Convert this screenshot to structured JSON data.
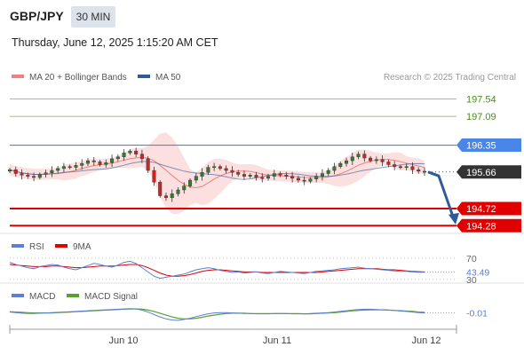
{
  "header": {
    "symbol": "GBP/JPY",
    "timeframe": "30 MIN",
    "datetime": "Thursday, June 12, 2025 1:15:20 AM CET"
  },
  "colors": {
    "ma20": "#f08080",
    "ma50": "#2e5b9a",
    "bollinger_fill": "#fbd9d9",
    "resistance": "#7cb342",
    "pivot": "#4a86e8",
    "support": "#e00000",
    "current": "#333333",
    "candle_up": "#2e7d32",
    "candle_down": "#c62828",
    "rsi": "#5b7fd6",
    "rsi_ma": "#e00000",
    "macd": "#5b7fd6",
    "macd_signal": "#5aa02c"
  },
  "chart_data": [
    {
      "type": "candlestick",
      "legend": [
        {
          "name": "MA 20 + Bollinger Bands",
          "color": "#f08080"
        },
        {
          "name": "MA 50",
          "color": "#2e5b9a"
        }
      ],
      "legend_position": "top-left",
      "credit": "Research © 2025 Trading Central",
      "x_ticks": [
        "Jun 10",
        "Jun 11",
        "Jun 12"
      ],
      "ylim": [
        194.15,
        197.8
      ],
      "levels": [
        {
          "label": "197.54",
          "value": 197.54,
          "kind": "resistance"
        },
        {
          "label": "197.09",
          "value": 197.09,
          "kind": "resistance"
        },
        {
          "label": "196.35",
          "value": 196.35,
          "kind": "pivot"
        },
        {
          "label": "195.66",
          "value": 195.66,
          "kind": "current"
        },
        {
          "label": "194.72",
          "value": 194.72,
          "kind": "support"
        },
        {
          "label": "194.28",
          "value": 194.28,
          "kind": "support"
        }
      ],
      "close_series": [
        195.72,
        195.62,
        195.58,
        195.55,
        195.52,
        195.6,
        195.64,
        195.7,
        195.75,
        195.8,
        195.78,
        195.83,
        195.88,
        195.95,
        195.92,
        195.85,
        195.9,
        196.0,
        196.05,
        196.15,
        196.2,
        196.12,
        196.0,
        195.7,
        195.4,
        195.05,
        195.0,
        195.1,
        195.2,
        195.3,
        195.45,
        195.55,
        195.65,
        195.78,
        195.8,
        195.75,
        195.7,
        195.65,
        195.6,
        195.55,
        195.58,
        195.52,
        195.5,
        195.55,
        195.62,
        195.58,
        195.55,
        195.5,
        195.45,
        195.42,
        195.48,
        195.55,
        195.62,
        195.7,
        195.8,
        195.88,
        195.95,
        196.05,
        196.12,
        196.02,
        195.95,
        195.98,
        195.92,
        195.85,
        195.8,
        195.78,
        195.8,
        195.72,
        195.68,
        195.66
      ],
      "forecast": [
        195.66,
        194.45
      ]
    },
    {
      "type": "line",
      "legend": [
        {
          "name": "RSI",
          "color": "#5b7fd6"
        },
        {
          "name": "9MA",
          "color": "#e00000"
        }
      ],
      "ylim": [
        28,
        78
      ],
      "ticks": [
        "70",
        "30"
      ],
      "last_value_label": "43.49",
      "rsi": [
        62,
        58,
        55,
        52,
        50,
        54,
        56,
        58,
        57,
        53,
        50,
        48,
        52,
        56,
        60,
        58,
        55,
        53,
        57,
        62,
        64,
        60,
        52,
        44,
        36,
        32,
        34,
        36,
        38,
        40,
        44,
        48,
        50,
        52,
        50,
        47,
        45,
        43,
        44,
        42,
        43,
        44,
        42,
        41,
        43,
        45,
        44,
        43,
        42,
        41,
        43,
        45,
        46,
        47,
        48,
        50,
        51,
        52,
        53,
        51,
        50,
        49,
        48,
        47,
        46,
        45,
        45,
        44,
        43.5,
        43.49
      ],
      "rsi_ma": [
        58,
        57,
        56,
        55,
        54,
        54,
        54,
        55,
        55,
        54,
        53,
        52,
        52,
        53,
        54,
        55,
        55,
        55,
        56,
        57,
        58,
        58,
        56,
        52,
        47,
        42,
        38,
        36,
        36,
        37,
        39,
        42,
        45,
        47,
        48,
        48,
        47,
        46,
        45,
        44,
        44,
        44,
        43,
        43,
        43,
        43,
        43,
        43,
        43,
        43,
        43,
        43,
        44,
        45,
        46,
        47,
        48,
        49,
        50,
        50,
        50,
        50,
        49,
        48,
        48,
        47,
        46,
        45,
        44.5,
        44
      ]
    },
    {
      "type": "line",
      "legend": [
        {
          "name": "MACD",
          "color": "#5b7fd6"
        },
        {
          "name": "MACD Signal",
          "color": "#5aa02c"
        }
      ],
      "ylim": [
        -0.45,
        0.35
      ],
      "last_value_label": "-0.01",
      "macd": [
        0.02,
        0.0,
        -0.02,
        -0.03,
        -0.03,
        -0.02,
        -0.01,
        0.0,
        0.01,
        0.02,
        0.03,
        0.04,
        0.05,
        0.06,
        0.07,
        0.08,
        0.09,
        0.1,
        0.11,
        0.12,
        0.13,
        0.12,
        0.08,
        0.02,
        -0.06,
        -0.14,
        -0.2,
        -0.24,
        -0.25,
        -0.22,
        -0.18,
        -0.13,
        -0.08,
        -0.04,
        -0.01,
        0.0,
        0.0,
        -0.01,
        -0.02,
        -0.03,
        -0.03,
        -0.04,
        -0.04,
        -0.04,
        -0.03,
        -0.03,
        -0.03,
        -0.04,
        -0.04,
        -0.04,
        -0.03,
        -0.02,
        -0.01,
        0.0,
        0.02,
        0.04,
        0.06,
        0.08,
        0.1,
        0.11,
        0.11,
        0.1,
        0.09,
        0.08,
        0.07,
        0.05,
        0.04,
        0.02,
        0.0,
        -0.01
      ],
      "macd_signal": [
        0.03,
        0.02,
        0.01,
        0.0,
        -0.01,
        -0.01,
        -0.01,
        -0.01,
        0.0,
        0.01,
        0.02,
        0.03,
        0.04,
        0.05,
        0.06,
        0.07,
        0.08,
        0.09,
        0.1,
        0.11,
        0.12,
        0.12,
        0.11,
        0.08,
        0.04,
        -0.02,
        -0.08,
        -0.14,
        -0.18,
        -0.2,
        -0.2,
        -0.18,
        -0.15,
        -0.11,
        -0.08,
        -0.05,
        -0.03,
        -0.02,
        -0.02,
        -0.02,
        -0.03,
        -0.03,
        -0.03,
        -0.03,
        -0.03,
        -0.03,
        -0.03,
        -0.03,
        -0.03,
        -0.04,
        -0.04,
        -0.03,
        -0.02,
        -0.01,
        0.0,
        0.02,
        0.04,
        0.06,
        0.07,
        0.08,
        0.09,
        0.09,
        0.09,
        0.08,
        0.07,
        0.06,
        0.05,
        0.04,
        0.02,
        0.01
      ]
    }
  ]
}
